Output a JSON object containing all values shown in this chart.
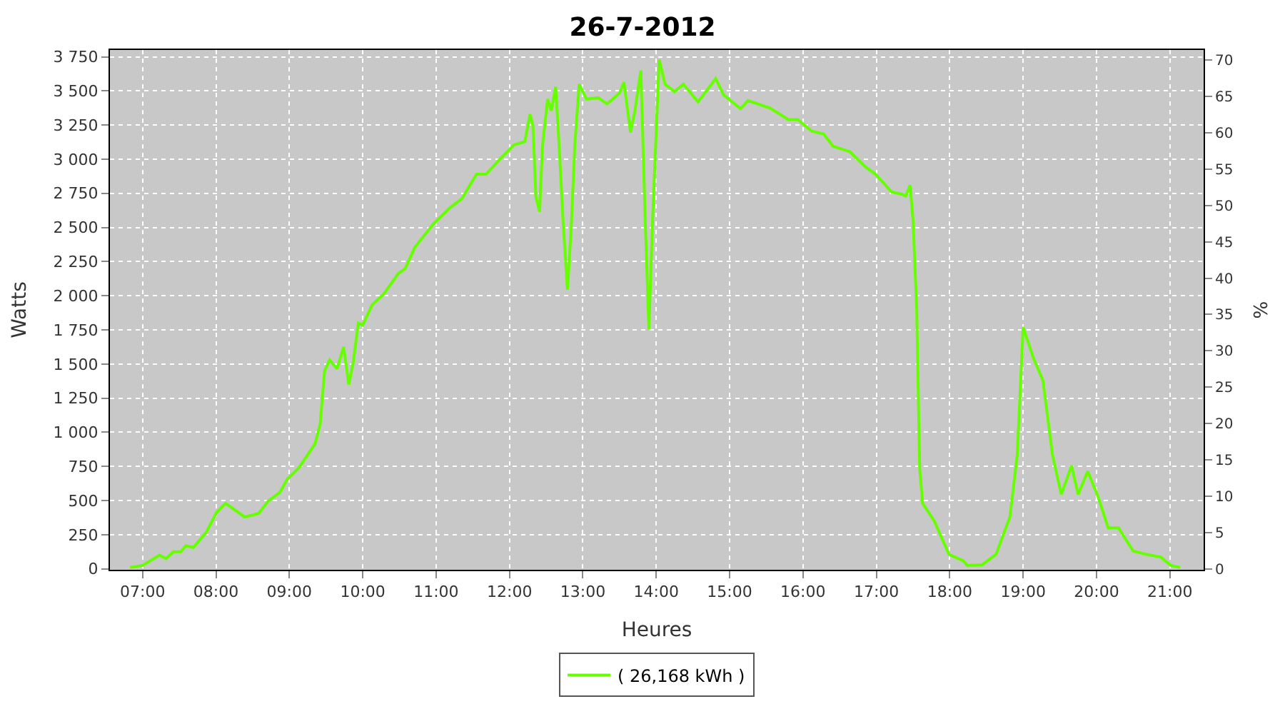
{
  "chart_data": {
    "type": "line",
    "title": "26-7-2012",
    "xlabel": "Heures",
    "ylabel": "Watts",
    "y2label": "%",
    "x": [
      6.83,
      7.0,
      7.23,
      7.32,
      7.42,
      7.52,
      7.59,
      7.69,
      7.87,
      8.01,
      8.13,
      8.39,
      8.58,
      8.71,
      8.87,
      8.97,
      9.13,
      9.35,
      9.42,
      9.48,
      9.55,
      9.65,
      9.74,
      9.81,
      9.87,
      9.94,
      10.0,
      10.13,
      10.29,
      10.48,
      10.58,
      10.71,
      10.97,
      11.19,
      11.35,
      11.55,
      11.68,
      11.87,
      12.06,
      12.21,
      12.28,
      12.32,
      12.36,
      12.41,
      12.45,
      12.52,
      12.57,
      12.63,
      12.68,
      12.73,
      12.79,
      12.84,
      12.89,
      12.95,
      13.05,
      13.21,
      13.33,
      13.5,
      13.56,
      13.65,
      13.71,
      13.79,
      13.85,
      13.9,
      13.95,
      14.04,
      14.12,
      14.25,
      14.37,
      14.57,
      14.81,
      14.92,
      15.15,
      15.25,
      15.55,
      15.8,
      15.93,
      16.12,
      16.28,
      16.41,
      16.64,
      16.86,
      16.99,
      17.21,
      17.34,
      17.4,
      17.46,
      17.5,
      17.55,
      17.59,
      17.63,
      17.79,
      17.99,
      18.18,
      18.24,
      18.44,
      18.63,
      18.82,
      18.92,
      19.0,
      19.14,
      19.27,
      19.4,
      19.52,
      19.66,
      19.75,
      19.88,
      20.02,
      20.16,
      20.3,
      20.5,
      20.69,
      20.88,
      21.01,
      21.14
    ],
    "series": [
      {
        "name": "( 26,168 kWh )",
        "color": "#66ff00",
        "values": [
          10,
          25,
          100,
          75,
          125,
          125,
          170,
          155,
          270,
          415,
          480,
          380,
          405,
          495,
          560,
          655,
          740,
          915,
          1060,
          1450,
          1530,
          1465,
          1625,
          1350,
          1510,
          1800,
          1785,
          1935,
          2015,
          2160,
          2200,
          2355,
          2530,
          2645,
          2710,
          2890,
          2890,
          3000,
          3105,
          3130,
          3330,
          3245,
          2725,
          2615,
          3100,
          3440,
          3355,
          3530,
          3065,
          2550,
          2045,
          2485,
          3100,
          3550,
          3440,
          3450,
          3405,
          3485,
          3565,
          3195,
          3355,
          3650,
          2550,
          1755,
          2550,
          3730,
          3550,
          3495,
          3550,
          3420,
          3590,
          3470,
          3370,
          3430,
          3375,
          3290,
          3290,
          3205,
          3185,
          3095,
          3055,
          2940,
          2890,
          2760,
          2745,
          2730,
          2810,
          2550,
          1900,
          740,
          480,
          350,
          105,
          60,
          25,
          30,
          105,
          380,
          835,
          1770,
          1545,
          1380,
          835,
          545,
          755,
          545,
          715,
          530,
          300,
          300,
          130,
          105,
          85,
          25,
          10
        ]
      }
    ],
    "xlim": [
      6.555,
      21.46
    ],
    "xticks": [
      {
        "value": 7,
        "label": "07:00"
      },
      {
        "value": 8,
        "label": "08:00"
      },
      {
        "value": 9,
        "label": "09:00"
      },
      {
        "value": 10,
        "label": "10:00"
      },
      {
        "value": 11,
        "label": "11:00"
      },
      {
        "value": 12,
        "label": "12:00"
      },
      {
        "value": 13,
        "label": "13:00"
      },
      {
        "value": 14,
        "label": "14:00"
      },
      {
        "value": 15,
        "label": "15:00"
      },
      {
        "value": 16,
        "label": "16:00"
      },
      {
        "value": 17,
        "label": "17:00"
      },
      {
        "value": 18,
        "label": "18:00"
      },
      {
        "value": 19,
        "label": "19:00"
      },
      {
        "value": 20,
        "label": "20:00"
      },
      {
        "value": 21,
        "label": "21:00"
      }
    ],
    "ylim": [
      -7,
      3800
    ],
    "yticks": [
      0,
      250,
      500,
      750,
      {
        "value": 1000,
        "label": "1 000"
      },
      {
        "value": 1250,
        "label": "1 250"
      },
      {
        "value": 1500,
        "label": "1 500"
      },
      {
        "value": 1750,
        "label": "1 750"
      },
      {
        "value": 2000,
        "label": "2 000"
      },
      {
        "value": 2250,
        "label": "2 250"
      },
      {
        "value": 2500,
        "label": "2 500"
      },
      {
        "value": 2750,
        "label": "2 750"
      },
      {
        "value": 3000,
        "label": "3 000"
      },
      {
        "value": 3250,
        "label": "3 250"
      },
      {
        "value": 3500,
        "label": "3 500"
      },
      {
        "value": 3750,
        "label": "3 750"
      }
    ],
    "y2lim": [
      -0.13,
      71.4
    ],
    "y2ticks": [
      0,
      5,
      10,
      15,
      20,
      25,
      30,
      35,
      40,
      45,
      50,
      55,
      60,
      65,
      70
    ],
    "grid": true,
    "legend": "bottom",
    "marker": "none",
    "line_style": "solid"
  }
}
